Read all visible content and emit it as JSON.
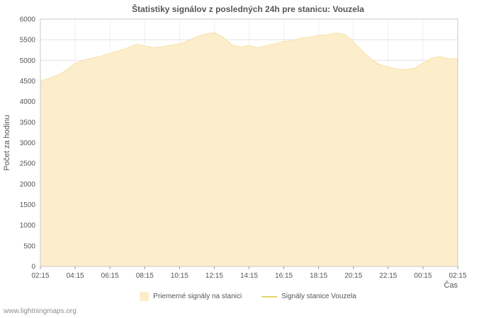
{
  "page": {
    "watermark": "www.lightningmaps.org"
  },
  "legend": {
    "items": [
      {
        "label": "Priemerné signály na stanici",
        "swatch": "area",
        "color": "#fdeecb"
      },
      {
        "label": "Signály stanice Vouzela",
        "swatch": "line",
        "color": "#e3d66a"
      }
    ]
  },
  "chart_data": {
    "type": "area",
    "title": "Štatistiky signálov z posledných 24h pre stanicu: Vouzela",
    "xlabel": "Čas",
    "ylabel": "Počet za hodinu",
    "ylim": [
      0,
      6000
    ],
    "ytick_step": 500,
    "y_tick_labels": [
      "0",
      "500",
      "1000",
      "1500",
      "2000",
      "2500",
      "3000",
      "3500",
      "4000",
      "4500",
      "5000",
      "5500",
      "6000"
    ],
    "x_tick_labels": [
      "02:15",
      "04:15",
      "06:15",
      "08:15",
      "10:15",
      "12:15",
      "14:15",
      "16:15",
      "18:15",
      "20:15",
      "22:15",
      "00:15",
      "02:15"
    ],
    "x_range_hours": [
      0,
      24
    ],
    "grid": true,
    "legend_position": "bottom",
    "series": [
      {
        "name": "Priemerné signály na stanici",
        "type": "area",
        "fill_color": "#fdeecb",
        "edge_color": "#f5e0a8",
        "x_hours": [
          0,
          0.5,
          1,
          1.5,
          2,
          2.5,
          3,
          3.5,
          4,
          4.5,
          5,
          5.5,
          6,
          6.5,
          7,
          7.5,
          8,
          8.5,
          9,
          9.5,
          10,
          10.5,
          11,
          11.5,
          12,
          12.5,
          13,
          13.5,
          14,
          14.5,
          15,
          15.5,
          16,
          16.5,
          17,
          17.5,
          18,
          18.5,
          19,
          19.5,
          20,
          20.5,
          21,
          21.5,
          22,
          22.5,
          23,
          23.5,
          24
        ],
        "values": [
          4500,
          4560,
          4640,
          4760,
          4930,
          5000,
          5060,
          5100,
          5170,
          5230,
          5300,
          5390,
          5350,
          5300,
          5330,
          5360,
          5400,
          5480,
          5570,
          5640,
          5670,
          5560,
          5380,
          5320,
          5360,
          5300,
          5360,
          5400,
          5460,
          5470,
          5540,
          5560,
          5600,
          5620,
          5660,
          5630,
          5450,
          5230,
          5030,
          4900,
          4840,
          4790,
          4770,
          4810,
          4930,
          5060,
          5090,
          5030,
          5050
        ]
      },
      {
        "name": "Signály stanice Vouzela",
        "type": "line",
        "color": "#e3d66a",
        "x_hours": [],
        "values": []
      }
    ]
  }
}
